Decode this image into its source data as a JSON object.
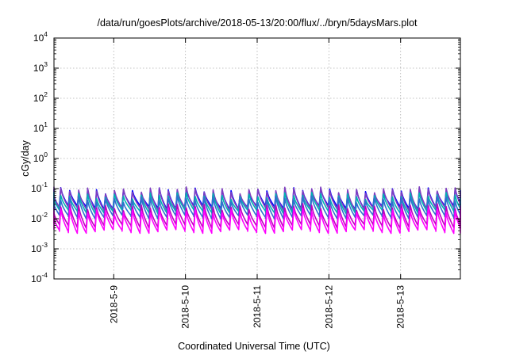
{
  "chart_data": {
    "type": "line",
    "title": "/data/run/goesPlots/archive/2018-05-13/20:00/flux/../bryn/5daysMars.plot",
    "xlabel": "Coordinated Universal Time (UTC)",
    "ylabel": "cGy/day",
    "y_scale": "log",
    "ylim": [
      0.0001,
      10000
    ],
    "y_ticks": [
      {
        "base": "10",
        "exp": "-4",
        "value": 0.0001
      },
      {
        "base": "10",
        "exp": "-3",
        "value": 0.001
      },
      {
        "base": "10",
        "exp": "-2",
        "value": 0.01
      },
      {
        "base": "10",
        "exp": "-1",
        "value": 0.1
      },
      {
        "base": "10",
        "exp": "0",
        "value": 1
      },
      {
        "base": "10",
        "exp": "1",
        "value": 10
      },
      {
        "base": "10",
        "exp": "2",
        "value": 100
      },
      {
        "base": "10",
        "exp": "3",
        "value": 1000
      },
      {
        "base": "10",
        "exp": "4",
        "value": 10000
      }
    ],
    "x_ticks": [
      "2018-5-9",
      "2018-5-10",
      "2018-5-11",
      "2018-5-12",
      "2018-5-13"
    ],
    "xlim": [
      "2018-05-08 04:00",
      "2018-05-13 20:00"
    ],
    "grid": true,
    "legend": "none",
    "series": [
      {
        "color": "#0000ff",
        "baseline": 0.025,
        "peak": 0.085
      },
      {
        "color": "#7f3fc0",
        "baseline": 0.022,
        "peak": 0.09
      },
      {
        "color": "#00b3b3",
        "baseline": 0.018,
        "peak": 0.06
      },
      {
        "color": "#2f6fd0",
        "baseline": 0.012,
        "peak": 0.045
      },
      {
        "color": "#c000c0",
        "baseline": 0.006,
        "peak": 0.025
      },
      {
        "color": "#ff00ff",
        "baseline": 0.004,
        "peak": 0.018
      }
    ],
    "pattern": "sawtooth, approximately 8 cycles per day, each cycle rising sharply then decaying"
  }
}
